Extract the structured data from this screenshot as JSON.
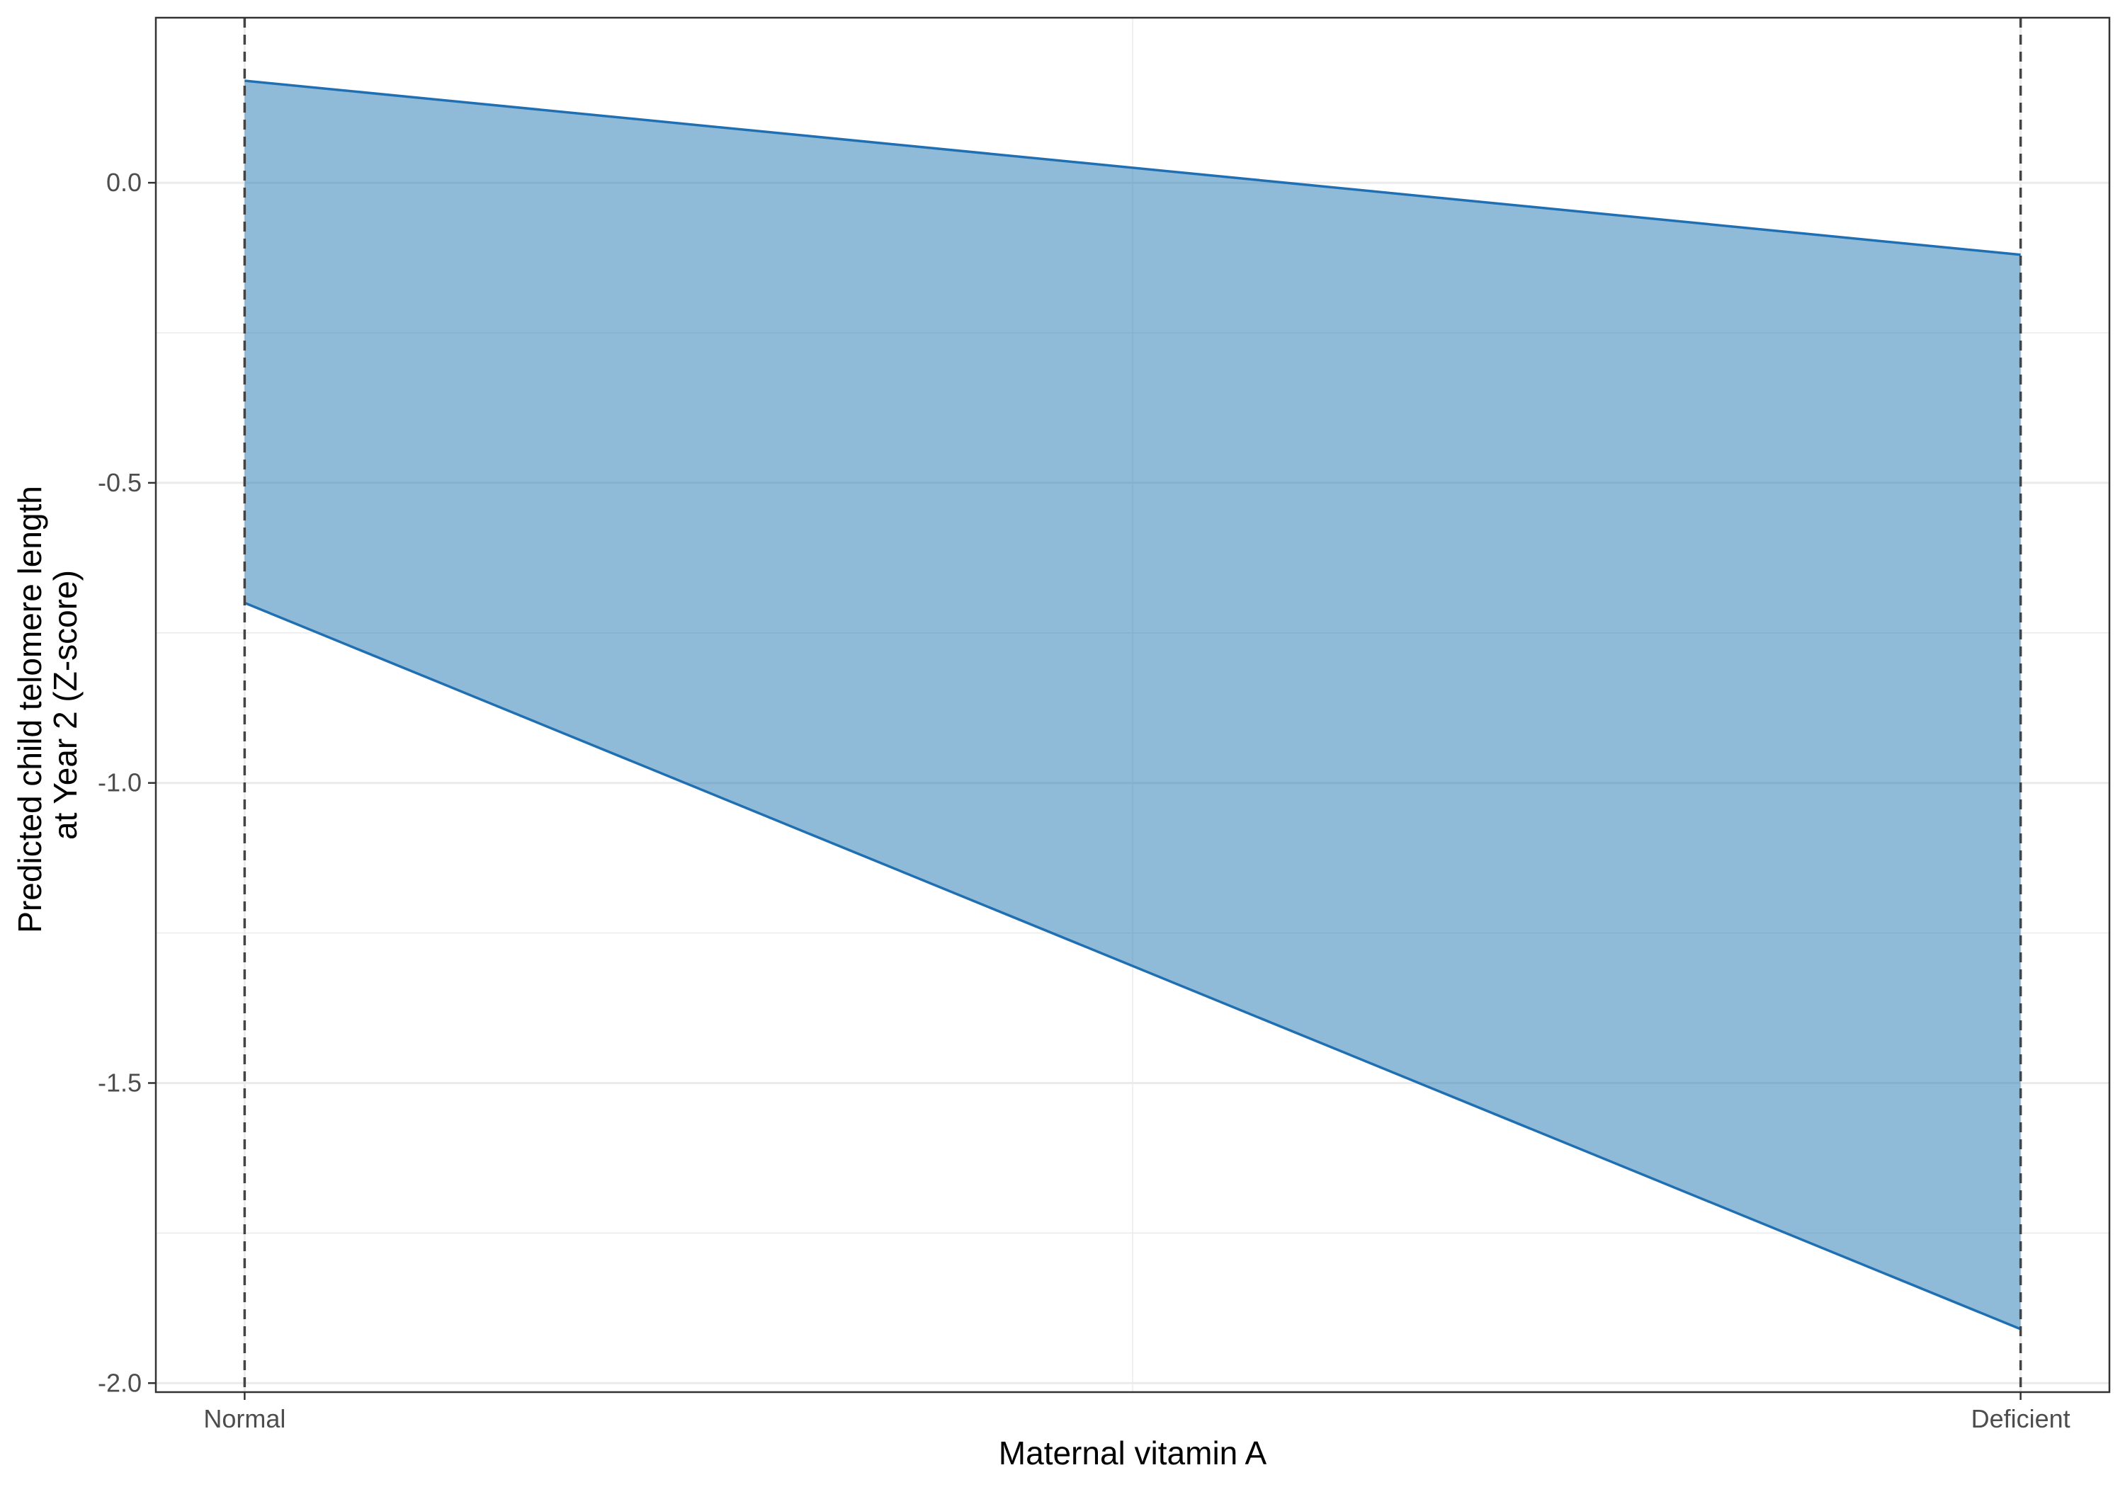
{
  "chart_data": {
    "type": "area",
    "xlabel": "Maternal vitamin A",
    "ylabel_lines": [
      "Predicted child telomere length",
      "at Year 2 (Z-score)"
    ],
    "categories": [
      "Normal",
      "Deficient"
    ],
    "series": [
      {
        "lower": [
          -0.7,
          -1.91
        ],
        "upper": [
          0.17,
          -0.12
        ]
      }
    ],
    "y_ticks": [
      {
        "value": 0.0,
        "label": "0.0"
      },
      {
        "value": -0.5,
        "label": "-0.5"
      },
      {
        "value": -1.0,
        "label": "-1.0"
      },
      {
        "value": -1.5,
        "label": "-1.5"
      },
      {
        "value": -2.0,
        "label": "-2.0"
      }
    ],
    "y_minor_ticks": [
      -0.25,
      -0.75,
      -1.25,
      -1.75
    ],
    "ylim": [
      -2.015,
      0.275
    ],
    "x_range": [
      -0.05,
      1.05
    ],
    "grid": true,
    "reference_lines": "dashed vertical lines at Normal and Deficient",
    "colors": {
      "fill": "#1f77b4",
      "line": "#1f6fb2",
      "grid": "#ebebeb",
      "frame": "#333333",
      "reference": "#444444"
    }
  }
}
